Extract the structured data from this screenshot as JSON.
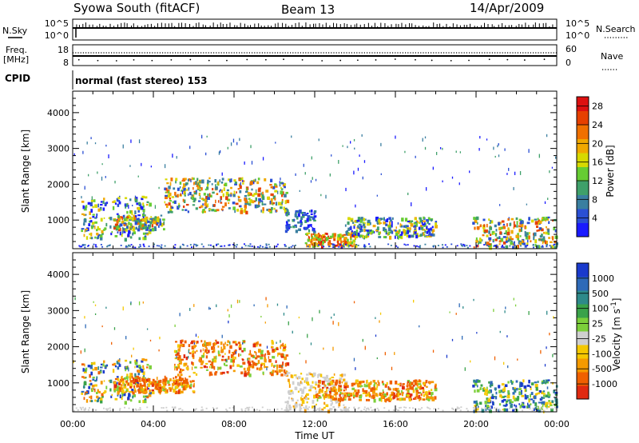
{
  "header": {
    "station": "Syowa South (fitACF)",
    "beam": "Beam 13",
    "date": "14/Apr/2009"
  },
  "nsky_panel": {
    "label": "N.Sky",
    "left_ticks": [
      "10^5",
      "10^0"
    ],
    "right_ticks": [
      "10^5",
      "10^0"
    ],
    "right_label": "N.Search",
    "right_label_style": "dotted"
  },
  "freq_panel": {
    "label_line1": "Freq.",
    "label_line2": "[MHz]",
    "left_ticks": [
      "18",
      "8"
    ],
    "right_ticks": [
      "60",
      "0"
    ],
    "right_label": "Nave",
    "right_label_style": "dotted"
  },
  "cpid_panel": {
    "label": "CPID",
    "value": "normal (fast stereo) 153"
  },
  "x_axis": {
    "title": "Time UT",
    "ticks": [
      "00:00",
      "04:00",
      "08:00",
      "12:00",
      "16:00",
      "20:00",
      "00:00"
    ]
  },
  "chart_data": [
    {
      "type": "heatmap",
      "panel": "power",
      "ylabel": "Slant Range [km]",
      "yticks": [
        1000,
        2000,
        3000,
        4000
      ],
      "ylim": [
        200,
        4600
      ],
      "xlim_hours": [
        0,
        24
      ],
      "colorbar": {
        "label": "Power [dB]",
        "ticks": [
          4,
          8,
          12,
          16,
          20,
          24,
          28
        ],
        "range": [
          0,
          30
        ],
        "colors": [
          "#1a1aff",
          "#2a4fd4",
          "#3a7fa0",
          "#3fa06a",
          "#66cc33",
          "#d7d900",
          "#f0a800",
          "#f07000",
          "#e64000",
          "#dd1010"
        ]
      },
      "echo_regions": [
        {
          "t_start": 0.4,
          "t_end": 3.8,
          "r_low": 500,
          "r_high": 1700,
          "level": "medium"
        },
        {
          "t_start": 2.0,
          "t_end": 4.5,
          "r_low": 750,
          "r_high": 1150,
          "level": "high"
        },
        {
          "t_start": 4.5,
          "t_end": 10.6,
          "r_low": 1250,
          "r_high": 2200,
          "level": "high"
        },
        {
          "t_start": 10.5,
          "t_end": 12.0,
          "r_low": 700,
          "r_high": 1300,
          "level": "low"
        },
        {
          "t_start": 11.5,
          "t_end": 14.0,
          "r_low": 300,
          "r_high": 650,
          "level": "very high"
        },
        {
          "t_start": 13.5,
          "t_end": 18.0,
          "r_low": 550,
          "r_high": 1100,
          "level": "medium"
        },
        {
          "t_start": 19.8,
          "t_end": 24.0,
          "r_low": 250,
          "r_high": 1100,
          "level": "high"
        }
      ]
    },
    {
      "type": "heatmap",
      "panel": "velocity",
      "ylabel": "Slant Range [km]",
      "yticks": [
        1000,
        2000,
        3000,
        4000
      ],
      "ylim": [
        200,
        4600
      ],
      "xlim_hours": [
        0,
        24
      ],
      "colorbar": {
        "label": "Velocity [m s",
        "label_sup": "-1",
        "label_end": "]",
        "ticks": [
          "1000",
          "500",
          "100",
          "25",
          "-25",
          "-100",
          "-500",
          "-1000"
        ],
        "colors": [
          "#1a3acc",
          "#2e6ab8",
          "#2e8a8a",
          "#3aa24a",
          "#7ccf3a",
          "#cfcfcf",
          "#f5c800",
          "#f59a00",
          "#f06000",
          "#e02a10"
        ]
      },
      "echo_regions": [
        {
          "t_start": 0.4,
          "t_end": 3.8,
          "r_low": 500,
          "r_high": 1700,
          "sign": "mixed"
        },
        {
          "t_start": 2.0,
          "t_end": 6.0,
          "r_low": 750,
          "r_high": 1200,
          "sign": "negative"
        },
        {
          "t_start": 5.0,
          "t_end": 10.6,
          "r_low": 1250,
          "r_high": 2200,
          "sign": "negative"
        },
        {
          "t_start": 10.5,
          "t_end": 13.5,
          "r_low": 250,
          "r_high": 1300,
          "sign": "ground scatter"
        },
        {
          "t_start": 12.0,
          "t_end": 18.0,
          "r_low": 550,
          "r_high": 1100,
          "sign": "negative"
        },
        {
          "t_start": 19.8,
          "t_end": 24.0,
          "r_low": 250,
          "r_high": 1100,
          "sign": "positive"
        }
      ]
    }
  ]
}
